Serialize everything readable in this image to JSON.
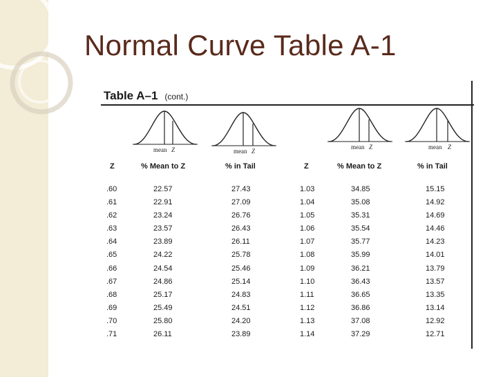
{
  "slide": {
    "title": "Normal Curve Table A-1"
  },
  "table": {
    "title": "Table A–1",
    "subtitle": "(cont.)",
    "curve_labels": {
      "mean": "mean",
      "z": "Z"
    },
    "headers": [
      "Z",
      "% Mean to Z",
      "% in Tail",
      "Z",
      "% Mean to Z",
      "% in Tail"
    ],
    "left_z": [
      ".60",
      ".61",
      ".62",
      ".63",
      ".64",
      ".65",
      ".66",
      ".67",
      ".68",
      ".69",
      ".70",
      ".71"
    ],
    "left_mean_to_z": [
      "22.57",
      "22.91",
      "23.24",
      "23.57",
      "23.89",
      "24.22",
      "24.54",
      "24.86",
      "25.17",
      "25.49",
      "25.80",
      "26.11"
    ],
    "left_in_tail": [
      "27.43",
      "27.09",
      "26.76",
      "26.43",
      "26.11",
      "25.78",
      "25.46",
      "25.14",
      "24.83",
      "24.51",
      "24.20",
      "23.89"
    ],
    "right_z": [
      "1.03",
      "1.04",
      "1.05",
      "1.06",
      "1.07",
      "1.08",
      "1.09",
      "1.10",
      "1.11",
      "1.12",
      "1.13",
      "1.14"
    ],
    "right_mean_to_z": [
      "34.85",
      "35.08",
      "35.31",
      "35.54",
      "35.77",
      "35.99",
      "36.21",
      "36.43",
      "36.65",
      "36.86",
      "37.08",
      "37.29"
    ],
    "right_in_tail": [
      "15.15",
      "14.92",
      "14.69",
      "14.46",
      "14.23",
      "14.01",
      "13.79",
      "13.57",
      "13.35",
      "13.14",
      "12.92",
      "12.71"
    ]
  },
  "colors": {
    "title": "#5a2a1c",
    "band": "#f3ecd6",
    "ink": "#1a1a1a"
  }
}
